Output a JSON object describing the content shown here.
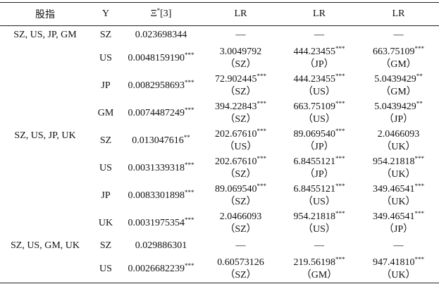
{
  "header": {
    "stock_index": "股指",
    "y": "Y",
    "xi": {
      "symbol": "Ξ",
      "sup": "*",
      "ref": "[3]"
    },
    "lr": [
      "LR",
      "LR",
      "LR"
    ]
  },
  "groups": [
    {
      "label": "SZ, US, JP, GM",
      "rows": [
        {
          "y": "SZ",
          "xi": {
            "value": "0.023698344"
          },
          "lr": [
            {
              "value": "—"
            },
            {
              "value": "—"
            },
            {
              "value": "—"
            }
          ]
        },
        {
          "y": "US",
          "xi": {
            "value": "0.0048159190",
            "sig": "***"
          },
          "lr": [
            {
              "value": "3.0049792",
              "ref": "（SZ）"
            },
            {
              "value": "444.23455",
              "sig": "***",
              "ref": "（JP）"
            },
            {
              "value": "663.75109",
              "sig": "***",
              "ref": "（GM）"
            }
          ]
        },
        {
          "y": "JP",
          "xi": {
            "value": "0.0082958693",
            "sig": "***"
          },
          "lr": [
            {
              "value": "72.902445",
              "sig": "***",
              "ref": "（SZ）"
            },
            {
              "value": "444.23455",
              "sig": "***",
              "ref": "（US）"
            },
            {
              "value": "5.0439429",
              "sig": "**",
              "ref": "（GM）"
            }
          ]
        },
        {
          "y": "GM",
          "xi": {
            "value": "0.0074487249",
            "sig": "***"
          },
          "lr": [
            {
              "value": "394.22843",
              "sig": "***",
              "ref": "（SZ）"
            },
            {
              "value": "663.75109",
              "sig": "***",
              "ref": "（US）"
            },
            {
              "value": "5.0439429",
              "sig": "**",
              "ref": "（JP）"
            }
          ]
        }
      ]
    },
    {
      "label": "SZ, US, JP, UK",
      "rows": [
        {
          "y": "SZ",
          "xi": {
            "value": "0.013047616",
            "sig": "**"
          },
          "lr": [
            {
              "value": "202.67610",
              "sig": "***",
              "ref": "（US）"
            },
            {
              "value": "89.069540",
              "sig": "***",
              "ref": "（JP）"
            },
            {
              "value": "2.0466093",
              "ref": "（UK）"
            }
          ]
        },
        {
          "y": "US",
          "xi": {
            "value": "0.0031339318",
            "sig": "***"
          },
          "lr": [
            {
              "value": "202.67610",
              "sig": "***",
              "ref": "（SZ）"
            },
            {
              "value": "6.8455121",
              "sig": "***",
              "ref": "（JP）"
            },
            {
              "value": "954.21818",
              "sig": "***",
              "ref": "（UK）"
            }
          ]
        },
        {
          "y": "JP",
          "xi": {
            "value": "0.0083301898",
            "sig": "***"
          },
          "lr": [
            {
              "value": "89.069540",
              "sig": "***",
              "ref": "（SZ）"
            },
            {
              "value": "6.8455121",
              "sig": "***",
              "ref": "（US）"
            },
            {
              "value": "349.46541",
              "sig": "***",
              "ref": "（UK）"
            }
          ]
        },
        {
          "y": "UK",
          "xi": {
            "value": "0.0031975354",
            "sig": "***"
          },
          "lr": [
            {
              "value": "2.0466093",
              "ref": "（SZ）"
            },
            {
              "value": "954.21818",
              "sig": "***",
              "ref": "（US）"
            },
            {
              "value": "349.46541",
              "sig": "***",
              "ref": "（JP）"
            }
          ]
        }
      ]
    },
    {
      "label": "SZ, US, GM, UK",
      "rows": [
        {
          "y": "SZ",
          "xi": {
            "value": "0.029886301"
          },
          "lr": [
            {
              "value": "—"
            },
            {
              "value": "—"
            },
            {
              "value": "—"
            }
          ]
        },
        {
          "y": "US",
          "xi": {
            "value": "0.0026682239",
            "sig": "***"
          },
          "lr": [
            {
              "value": "0.60573126",
              "ref": "（SZ）"
            },
            {
              "value": "219.56198",
              "sig": "***",
              "ref": "（GM）"
            },
            {
              "value": "947.41810",
              "sig": "***",
              "ref": "（UK）"
            }
          ]
        }
      ]
    }
  ]
}
